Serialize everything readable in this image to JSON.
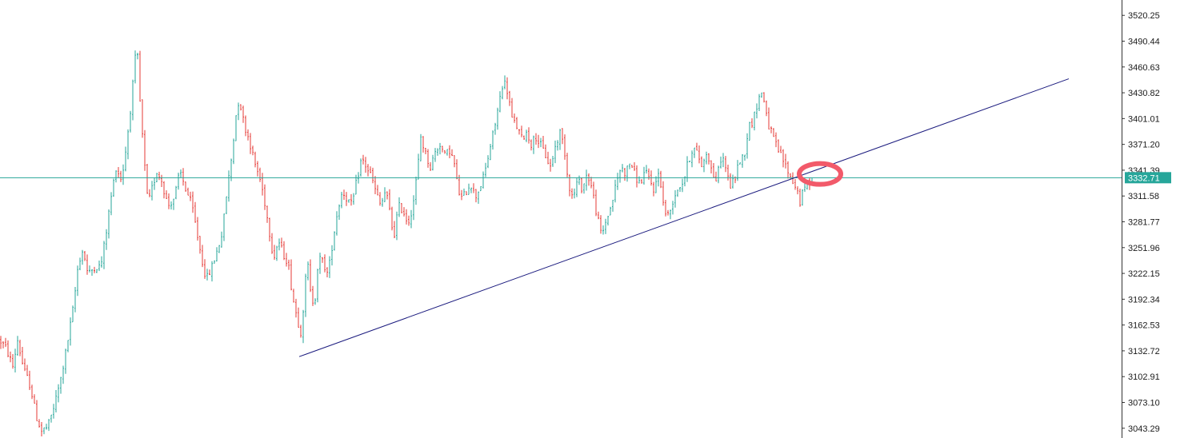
{
  "chart_data": {
    "type": "candlestick",
    "price_axis": {
      "position": "right",
      "ticks": [
        "3520.25",
        "3490.44",
        "3460.63",
        "3430.82",
        "3401.01",
        "3371.20",
        "3341.39",
        "3311.58",
        "3281.77",
        "3251.96",
        "3222.15",
        "3192.34",
        "3162.53",
        "3132.72",
        "3102.91",
        "3073.10",
        "3043.29"
      ],
      "range": [
        3032.0,
        3538.0
      ]
    },
    "current_price": {
      "value": 3332.71,
      "label": "3332.71",
      "color": "#26a69a"
    },
    "colors": {
      "up": "#26a69a",
      "down": "#e53935",
      "trendline": "#1a1a7e",
      "marker": "#f25a6a",
      "axis": "#333333"
    },
    "waypoints": [
      [
        0,
        3145
      ],
      [
        8,
        3135
      ],
      [
        16,
        3115
      ],
      [
        22,
        3145
      ],
      [
        30,
        3110
      ],
      [
        38,
        3092
      ],
      [
        45,
        3058
      ],
      [
        52,
        3040
      ],
      [
        60,
        3045
      ],
      [
        68,
        3070
      ],
      [
        76,
        3100
      ],
      [
        84,
        3140
      ],
      [
        92,
        3185
      ],
      [
        98,
        3235
      ],
      [
        104,
        3250
      ],
      [
        110,
        3220
      ],
      [
        118,
        3230
      ],
      [
        126,
        3230
      ],
      [
        132,
        3265
      ],
      [
        138,
        3305
      ],
      [
        145,
        3345
      ],
      [
        152,
        3330
      ],
      [
        158,
        3370
      ],
      [
        164,
        3420
      ],
      [
        168,
        3460
      ],
      [
        171,
        3488
      ],
      [
        175,
        3420
      ],
      [
        180,
        3355
      ],
      [
        185,
        3300
      ],
      [
        190,
        3320
      ],
      [
        196,
        3340
      ],
      [
        202,
        3330
      ],
      [
        210,
        3300
      ],
      [
        218,
        3310
      ],
      [
        225,
        3340
      ],
      [
        232,
        3320
      ],
      [
        240,
        3300
      ],
      [
        246,
        3270
      ],
      [
        252,
        3240
      ],
      [
        258,
        3215
      ],
      [
        265,
        3230
      ],
      [
        272,
        3250
      ],
      [
        278,
        3270
      ],
      [
        284,
        3320
      ],
      [
        290,
        3360
      ],
      [
        295,
        3405
      ],
      [
        299,
        3425
      ],
      [
        305,
        3395
      ],
      [
        312,
        3375
      ],
      [
        318,
        3350
      ],
      [
        324,
        3335
      ],
      [
        330,
        3310
      ],
      [
        336,
        3275
      ],
      [
        342,
        3240
      ],
      [
        348,
        3260
      ],
      [
        354,
        3245
      ],
      [
        360,
        3235
      ],
      [
        366,
        3195
      ],
      [
        372,
        3168
      ],
      [
        376,
        3155
      ],
      [
        380,
        3190
      ],
      [
        384,
        3240
      ],
      [
        388,
        3200
      ],
      [
        393,
        3185
      ],
      [
        398,
        3240
      ],
      [
        404,
        3235
      ],
      [
        410,
        3220
      ],
      [
        416,
        3260
      ],
      [
        422,
        3295
      ],
      [
        428,
        3318
      ],
      [
        434,
        3308
      ],
      [
        440,
        3300
      ],
      [
        446,
        3330
      ],
      [
        452,
        3355
      ],
      [
        458,
        3345
      ],
      [
        464,
        3335
      ],
      [
        470,
        3315
      ],
      [
        476,
        3300
      ],
      [
        482,
        3318
      ],
      [
        488,
        3290
      ],
      [
        492,
        3262
      ],
      [
        498,
        3300
      ],
      [
        504,
        3295
      ],
      [
        510,
        3280
      ],
      [
        516,
        3300
      ],
      [
        522,
        3342
      ],
      [
        526,
        3380
      ],
      [
        532,
        3360
      ],
      [
        538,
        3345
      ],
      [
        544,
        3362
      ],
      [
        550,
        3372
      ],
      [
        556,
        3358
      ],
      [
        562,
        3365
      ],
      [
        568,
        3348
      ],
      [
        572,
        3322
      ],
      [
        576,
        3308
      ],
      [
        582,
        3315
      ],
      [
        588,
        3328
      ],
      [
        594,
        3310
      ],
      [
        600,
        3322
      ],
      [
        606,
        3338
      ],
      [
        612,
        3365
      ],
      [
        618,
        3390
      ],
      [
        624,
        3420
      ],
      [
        628,
        3440
      ],
      [
        632,
        3442
      ],
      [
        636,
        3425
      ],
      [
        640,
        3400
      ],
      [
        646,
        3392
      ],
      [
        652,
        3378
      ],
      [
        658,
        3385
      ],
      [
        664,
        3372
      ],
      [
        670,
        3380
      ],
      [
        676,
        3370
      ],
      [
        682,
        3358
      ],
      [
        688,
        3345
      ],
      [
        694,
        3368
      ],
      [
        700,
        3385
      ],
      [
        705,
        3370
      ],
      [
        710,
        3330
      ],
      [
        716,
        3308
      ],
      [
        722,
        3330
      ],
      [
        728,
        3320
      ],
      [
        734,
        3338
      ],
      [
        740,
        3320
      ],
      [
        746,
        3290
      ],
      [
        752,
        3265
      ],
      [
        758,
        3285
      ],
      [
        764,
        3300
      ],
      [
        770,
        3325
      ],
      [
        776,
        3345
      ],
      [
        782,
        3338
      ],
      [
        788,
        3352
      ],
      [
        794,
        3335
      ],
      [
        800,
        3325
      ],
      [
        806,
        3340
      ],
      [
        812,
        3330
      ],
      [
        818,
        3318
      ],
      [
        824,
        3342
      ],
      [
        830,
        3295
      ],
      [
        836,
        3288
      ],
      [
        842,
        3310
      ],
      [
        848,
        3322
      ],
      [
        854,
        3328
      ],
      [
        860,
        3350
      ],
      [
        866,
        3368
      ],
      [
        872,
        3360
      ],
      [
        878,
        3345
      ],
      [
        884,
        3365
      ],
      [
        890,
        3338
      ],
      [
        896,
        3330
      ],
      [
        902,
        3360
      ],
      [
        908,
        3342
      ],
      [
        912,
        3322
      ],
      [
        918,
        3330
      ],
      [
        924,
        3352
      ],
      [
        930,
        3358
      ],
      [
        936,
        3392
      ],
      [
        942,
        3400
      ],
      [
        948,
        3425
      ],
      [
        952,
        3430
      ],
      [
        956,
        3420
      ],
      [
        960,
        3395
      ],
      [
        966,
        3380
      ],
      [
        972,
        3365
      ],
      [
        978,
        3355
      ],
      [
        984,
        3342
      ],
      [
        990,
        3330
      ],
      [
        996,
        3320
      ],
      [
        1000,
        3305
      ],
      [
        1006,
        3322
      ],
      [
        1012,
        3328
      ],
      [
        1016,
        3332
      ]
    ],
    "trendline": {
      "from": [
        374,
        3126
      ],
      "to": [
        1336,
        3447
      ]
    },
    "annotations": [
      {
        "type": "ellipse",
        "center": [
          1025,
          3337
        ]
      }
    ]
  }
}
